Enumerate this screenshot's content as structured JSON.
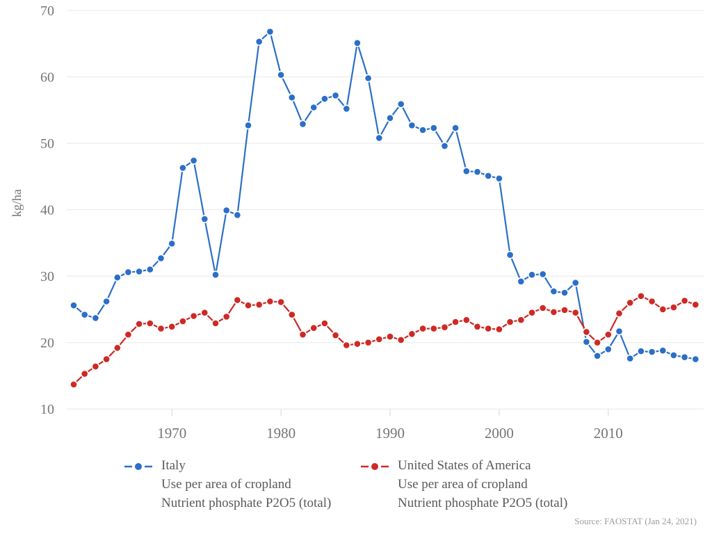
{
  "chart_data": {
    "type": "line",
    "title": "",
    "xlabel": "",
    "ylabel": "kg/ha",
    "ylim": [
      10,
      70
    ],
    "yticks": [
      10,
      20,
      30,
      40,
      50,
      60,
      70
    ],
    "xticks": [
      1970,
      1980,
      1990,
      2000,
      2010
    ],
    "grid": true,
    "legend_position": "bottom",
    "x": [
      1961,
      1962,
      1963,
      1964,
      1965,
      1966,
      1967,
      1968,
      1969,
      1970,
      1971,
      1972,
      1973,
      1974,
      1975,
      1976,
      1977,
      1978,
      1979,
      1980,
      1981,
      1982,
      1983,
      1984,
      1985,
      1986,
      1987,
      1988,
      1989,
      1990,
      1991,
      1992,
      1993,
      1994,
      1995,
      1996,
      1997,
      1998,
      1999,
      2000,
      2001,
      2002,
      2003,
      2004,
      2005,
      2006,
      2007,
      2008,
      2009,
      2010,
      2011,
      2012,
      2013,
      2014,
      2015,
      2016,
      2017,
      2018
    ],
    "series": [
      {
        "name": "Italy",
        "subtitle1": "Use per area of cropland",
        "subtitle2": "Nutrient phosphate P2O5 (total)",
        "color": "#2b6fc7",
        "values": [
          25.6,
          24.2,
          23.7,
          26.2,
          29.8,
          30.6,
          30.7,
          31.0,
          32.7,
          34.9,
          46.3,
          47.4,
          38.6,
          30.2,
          39.9,
          39.2,
          52.7,
          65.3,
          66.8,
          60.3,
          56.9,
          52.9,
          55.4,
          56.7,
          57.2,
          55.2,
          65.1,
          59.8,
          50.8,
          53.8,
          55.9,
          52.7,
          52.0,
          52.3,
          49.6,
          52.3,
          45.8,
          45.7,
          45.1,
          44.7,
          33.2,
          29.2,
          30.2,
          30.3,
          27.7,
          27.5,
          29.0,
          20.1,
          18.0,
          19.0,
          21.7,
          17.6,
          18.7,
          18.6,
          18.8,
          18.1,
          17.8,
          17.5
        ]
      },
      {
        "name": "United States of America",
        "subtitle1": "Use per area of cropland",
        "subtitle2": "Nutrient phosphate P2O5 (total)",
        "color": "#cd2a25",
        "values": [
          13.7,
          15.3,
          16.4,
          17.5,
          19.2,
          21.2,
          22.8,
          22.9,
          22.1,
          22.4,
          23.2,
          24.0,
          24.5,
          22.9,
          23.9,
          26.4,
          25.6,
          25.7,
          26.2,
          26.1,
          24.2,
          21.2,
          22.2,
          22.9,
          21.1,
          19.6,
          19.8,
          20.0,
          20.5,
          20.9,
          20.4,
          21.3,
          22.1,
          22.1,
          22.3,
          23.1,
          23.4,
          22.4,
          22.1,
          22.0,
          23.1,
          23.4,
          24.5,
          25.2,
          24.6,
          24.9,
          24.5,
          21.6,
          20.0,
          21.2,
          24.4,
          26.0,
          27.0,
          26.2,
          25.0,
          25.3,
          26.3,
          25.7
        ]
      }
    ],
    "source": "Source: FAOSTAT (Jan 24, 2021)",
    "colors": {
      "gridline": "#e8e8e8",
      "axis_line": "#d6d6d6",
      "tick_label": "#757575",
      "axis_label": "#757575",
      "legend_text": "#595959",
      "source_text": "#9b9b9b",
      "background": "#ffffff"
    }
  }
}
